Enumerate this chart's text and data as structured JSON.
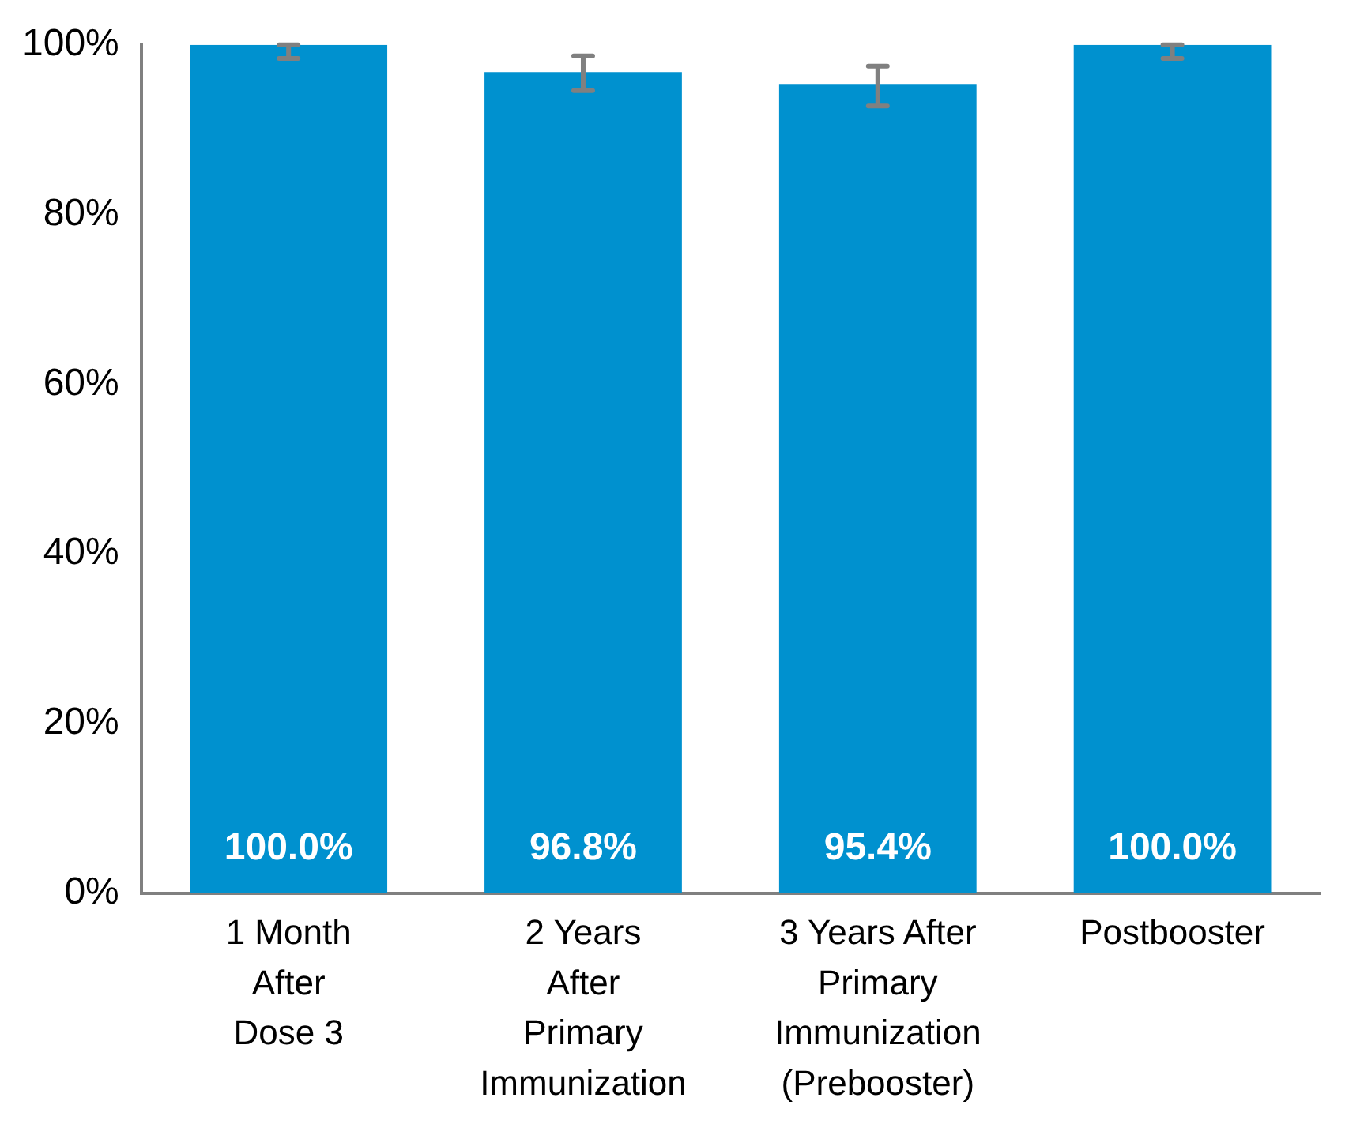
{
  "chart_data": {
    "type": "bar",
    "categories": [
      "1 Month\nAfter\nDose 3",
      "2 Years\nAfter\nPrimary\nImmunization",
      "3 Years After\nPrimary\nImmunization\n(Prebooster)",
      "Postbooster"
    ],
    "values": [
      100.0,
      96.8,
      95.4,
      100.0
    ],
    "value_labels": [
      "100.0%",
      "96.8%",
      "95.4%",
      "100.0%"
    ],
    "errors": [
      [
        98.4,
        100
      ],
      [
        94.6,
        98.7
      ],
      [
        92.8,
        97.5
      ],
      [
        98.4,
        100
      ]
    ],
    "color": "#0091cf",
    "ylim": [
      0,
      100
    ],
    "yticks": [
      {
        "value": 0,
        "label": "0%"
      },
      {
        "value": 20,
        "label": "20%"
      },
      {
        "value": 40,
        "label": "40%"
      },
      {
        "value": 60,
        "label": "60%"
      },
      {
        "value": 80,
        "label": "80%"
      },
      {
        "value": 100,
        "label": "100%"
      }
    ],
    "grid": false,
    "legend": false
  }
}
